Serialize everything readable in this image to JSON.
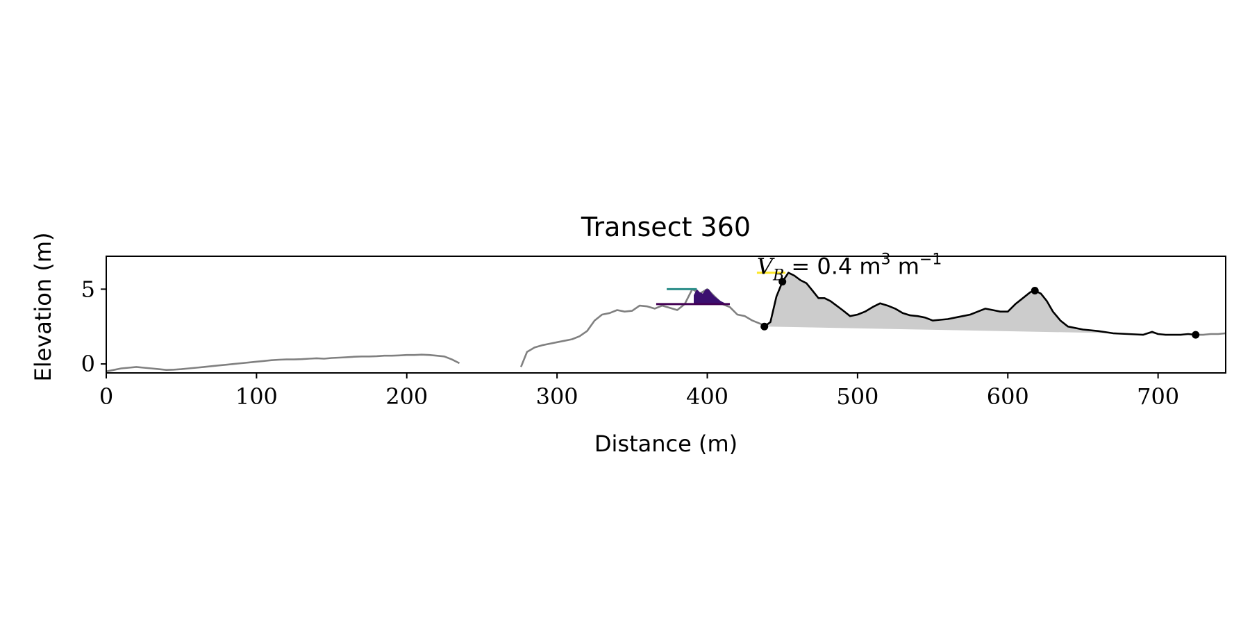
{
  "chart_data": {
    "type": "line",
    "title": "Transect 360",
    "xlabel": "Distance (m)",
    "ylabel": "Elevation (m)",
    "xlim": [
      0,
      745
    ],
    "ylim": [
      -0.6,
      7.2
    ],
    "xticks": [
      0,
      100,
      200,
      300,
      400,
      500,
      600,
      700
    ],
    "yticks": [
      0,
      5
    ],
    "grid": false,
    "legend": "none",
    "annotation": {
      "symbol": "V",
      "subscript": "B",
      "text": " = 0.4 m",
      "sup1": "3",
      "text2": " m",
      "sup2": "−1",
      "x": 433,
      "y": 6.1
    },
    "profile_segments": [
      {
        "x": [
          0,
          5,
          10,
          15,
          20,
          25,
          30,
          35,
          40,
          45,
          50,
          55,
          60,
          65,
          70,
          75,
          80,
          85,
          90,
          95,
          100,
          105,
          110,
          115,
          120,
          125,
          130,
          135,
          140,
          145,
          150,
          155,
          160,
          165,
          170,
          175,
          180,
          185,
          190,
          195,
          200,
          205,
          210,
          215,
          220,
          225,
          230,
          235
        ],
        "y": [
          -0.5,
          -0.4,
          -0.3,
          -0.25,
          -0.2,
          -0.25,
          -0.3,
          -0.35,
          -0.4,
          -0.38,
          -0.35,
          -0.3,
          -0.25,
          -0.2,
          -0.15,
          -0.1,
          -0.05,
          0.0,
          0.05,
          0.1,
          0.15,
          0.2,
          0.25,
          0.28,
          0.3,
          0.3,
          0.32,
          0.35,
          0.38,
          0.35,
          0.4,
          0.42,
          0.45,
          0.48,
          0.5,
          0.5,
          0.52,
          0.55,
          0.55,
          0.57,
          0.6,
          0.6,
          0.62,
          0.6,
          0.55,
          0.5,
          0.3,
          0.05
        ]
      },
      {
        "x": [
          276,
          280,
          285,
          290,
          295,
          300,
          305,
          310,
          315,
          320,
          325,
          330,
          335,
          340,
          345,
          350,
          355,
          360,
          365,
          370,
          375,
          380,
          385,
          390,
          395,
          400,
          405,
          410,
          415,
          420,
          425,
          430,
          435,
          440
        ],
        "y": [
          -0.2,
          0.8,
          1.1,
          1.25,
          1.35,
          1.45,
          1.55,
          1.65,
          1.85,
          2.2,
          2.9,
          3.3,
          3.4,
          3.6,
          3.5,
          3.55,
          3.9,
          3.85,
          3.7,
          3.9,
          3.75,
          3.6,
          4.0,
          5.0,
          4.7,
          5.0,
          4.5,
          4.0,
          3.8,
          3.3,
          3.2,
          2.9,
          2.7,
          2.5
        ]
      },
      {
        "x": [
          725,
          730,
          735,
          740,
          745
        ],
        "y": [
          1.95,
          1.95,
          2.0,
          2.0,
          2.05
        ]
      }
    ],
    "dune_profile": {
      "x": [
        438,
        442,
        446,
        450,
        454,
        458,
        462,
        466,
        470,
        474,
        478,
        482,
        486,
        490,
        495,
        500,
        505,
        510,
        515,
        520,
        525,
        530,
        535,
        540,
        545,
        550,
        555,
        560,
        565,
        570,
        575,
        580,
        585,
        590,
        595,
        600,
        605,
        610,
        615,
        618,
        622,
        626,
        630,
        635,
        640,
        650,
        660,
        670,
        680,
        690,
        696,
        700,
        705,
        710,
        715,
        720,
        725
      ],
      "y": [
        2.5,
        2.8,
        4.5,
        5.5,
        6.1,
        5.9,
        5.6,
        5.4,
        4.9,
        4.4,
        4.4,
        4.2,
        3.9,
        3.6,
        3.2,
        3.3,
        3.5,
        3.8,
        4.05,
        3.9,
        3.7,
        3.4,
        3.25,
        3.2,
        3.1,
        2.9,
        2.95,
        3.0,
        3.1,
        3.2,
        3.3,
        3.5,
        3.7,
        3.6,
        3.5,
        3.5,
        4.0,
        4.4,
        4.8,
        4.9,
        4.7,
        4.2,
        3.5,
        2.9,
        2.5,
        2.3,
        2.2,
        2.05,
        2.0,
        1.95,
        2.15,
        2.0,
        1.95,
        1.95,
        1.95,
        2.0,
        1.95
      ]
    },
    "dune_baseline": {
      "x": [
        438,
        725
      ],
      "y": [
        2.5,
        1.95
      ]
    },
    "dune_points": [
      {
        "x": 438,
        "y": 2.5
      },
      {
        "x": 450,
        "y": 5.5
      },
      {
        "x": 618,
        "y": 4.9
      },
      {
        "x": 725,
        "y": 1.95
      }
    ],
    "purple_fill": {
      "color": "#3b0f6f",
      "x": [
        391,
        393,
        395,
        397,
        399,
        401,
        403,
        405,
        407,
        409,
        411,
        413,
        415
      ],
      "y_top": [
        4.6,
        5.0,
        4.8,
        4.7,
        5.0,
        5.0,
        4.7,
        4.5,
        4.35,
        4.2,
        4.1,
        4.0,
        4.0
      ],
      "y_base": 4.0
    },
    "level_lines": [
      {
        "color": "#2a8d88",
        "x": [
          373,
          393
        ],
        "y": 5.0
      },
      {
        "color": "#440154",
        "x": [
          366,
          415
        ],
        "y": 4.0
      },
      {
        "color": "#fde725",
        "x": [
          433,
          452
        ],
        "y": 6.1
      }
    ],
    "colors": {
      "profile": "#808080",
      "dune": "#000000",
      "dune_fill": "#cccccc"
    }
  }
}
